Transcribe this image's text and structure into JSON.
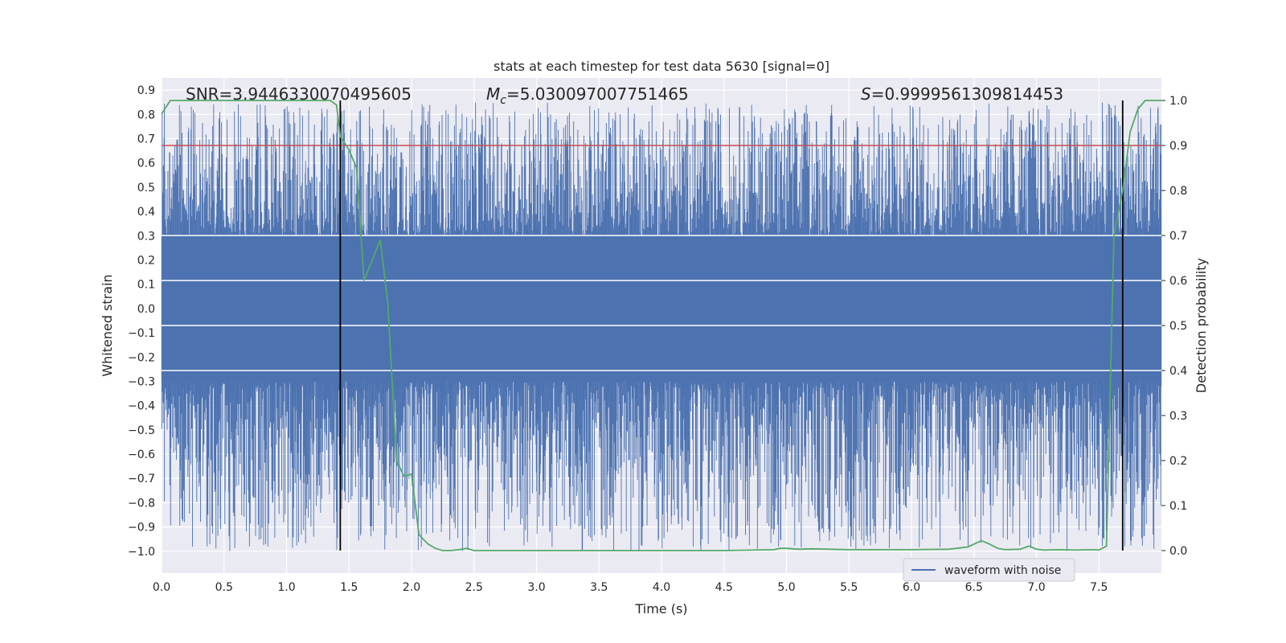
{
  "chart_data": {
    "type": "line",
    "title": "stats at each timestep for test data 5630 [signal=0]",
    "xlabel": "Time (s)",
    "ylabel": "Whitened strain",
    "y2label": "Detection probability",
    "xlim": [
      0.0,
      8.0
    ],
    "ylim": [
      -1.09,
      0.95
    ],
    "y2lim": [
      -0.05,
      1.05
    ],
    "xticks": [
      "0.0",
      "0.5",
      "1.0",
      "1.5",
      "2.0",
      "2.5",
      "3.0",
      "3.5",
      "4.0",
      "4.5",
      "5.0",
      "5.5",
      "6.0",
      "6.5",
      "7.0",
      "7.5"
    ],
    "yticks": [
      "0.9",
      "0.8",
      "0.7",
      "0.6",
      "0.5",
      "0.4",
      "0.3",
      "0.2",
      "0.1",
      "0.0",
      "-0.1",
      "-0.2",
      "-0.3",
      "-0.4",
      "-0.5",
      "-0.6",
      "-0.7",
      "-0.8",
      "-0.9",
      "-1.0"
    ],
    "y2ticks": [
      "1.0",
      "0.9",
      "0.8",
      "0.7",
      "0.6",
      "0.5",
      "0.4",
      "0.3",
      "0.2",
      "0.1",
      "0.0"
    ],
    "grid": true,
    "legend_placement": "lower-right",
    "annotations": {
      "snr": "SNR=3.9446330070495605",
      "mc_symbol": "M",
      "mc_sub": "c",
      "mc_value": "=5.030097007751465",
      "s_symbol": "S",
      "s_value": "=0.9999561309814453"
    },
    "threshold": {
      "axis": "right",
      "value": 0.9,
      "color": "#c44e52"
    },
    "vlines": [
      1.43,
      7.69
    ],
    "series": [
      {
        "name": "waveform with noise",
        "axis": "left",
        "color": "#4c72b0",
        "style": "noise",
        "typical_envelope": [
          -0.3,
          0.3
        ],
        "peak_range": [
          -1.0,
          0.85
        ]
      },
      {
        "axis": "right",
        "color": "#55a868",
        "x": [
          0.0,
          0.07,
          0.13,
          0.5,
          1.0,
          1.35,
          1.4,
          1.43,
          1.5,
          1.56,
          1.62,
          1.75,
          1.81,
          1.88,
          1.94,
          2.0,
          2.06,
          2.13,
          2.19,
          2.25,
          2.31,
          2.38,
          2.44,
          2.5,
          3.0,
          3.5,
          4.0,
          4.5,
          4.9,
          4.95,
          5.0,
          5.1,
          5.2,
          5.5,
          6.0,
          6.3,
          6.45,
          6.56,
          6.62,
          6.69,
          6.75,
          6.87,
          6.94,
          7.0,
          7.06,
          7.19,
          7.31,
          7.44,
          7.5,
          7.56,
          7.62,
          7.69,
          7.75,
          7.81,
          7.87,
          7.94,
          8.0
        ],
        "y": [
          0.97,
          1.0,
          1.0,
          1.0,
          1.0,
          1.0,
          0.99,
          0.92,
          0.89,
          0.85,
          0.6,
          0.69,
          0.55,
          0.2,
          0.165,
          0.17,
          0.035,
          0.015,
          0.005,
          0.0,
          0.0,
          0.002,
          0.005,
          0.0,
          0.0,
          0.0,
          0.0,
          0.0,
          0.002,
          0.005,
          0.005,
          0.003,
          0.004,
          0.002,
          0.002,
          0.003,
          0.008,
          0.022,
          0.015,
          0.005,
          0.002,
          0.003,
          0.01,
          0.003,
          0.001,
          0.002,
          0.001,
          0.002,
          0.001,
          0.01,
          0.7,
          0.8,
          0.93,
          0.98,
          1.0,
          1.0,
          1.0
        ]
      }
    ]
  }
}
